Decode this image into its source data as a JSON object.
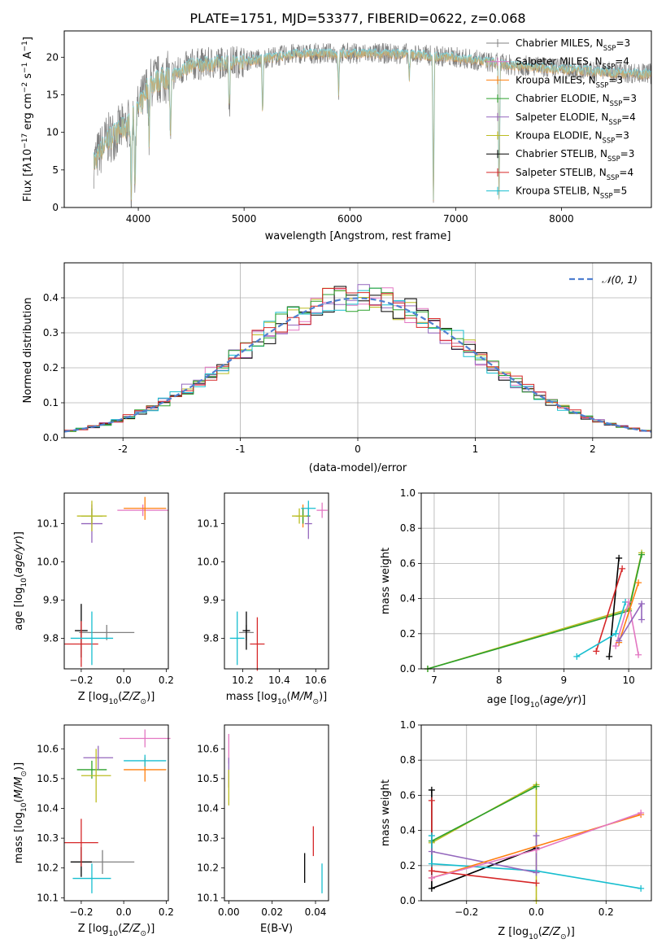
{
  "title": "PLATE=1751, MJD=53377, FIBERID=0622, z=0.068",
  "colors": {
    "chabrier_miles": "#808080",
    "salpeter_miles": "#e377c2",
    "kroupa_miles": "#ff7f0e",
    "chabrier_elodie": "#2ca02c",
    "salpeter_elodie": "#9467bd",
    "kroupa_elodie": "#bcbd22",
    "chabrier_stelib": "#000000",
    "salpeter_stelib": "#d62728",
    "kroupa_stelib": "#17becf",
    "normal_curve": "#4f7fd0"
  },
  "chart_data": [
    {
      "id": "spectrum",
      "type": "line",
      "xlabel": "wavelength [Angstrom, rest frame]",
      "ylabel": "Flux [f$_\\lambda$10$^{-17}$ erg cm$^{-2}$ s$^{-1}$ A$^{-1}$]",
      "ylabel_parts": [
        "Flux [f",
        "λ",
        "10",
        "−17",
        " erg cm",
        "−2",
        " s",
        "−1",
        " A",
        "−1",
        "]"
      ],
      "xlim": [
        3300,
        8850
      ],
      "ylim": [
        0,
        23.5
      ],
      "xticks": [
        4000,
        5000,
        6000,
        7000,
        8000
      ],
      "yticks": [
        0,
        5,
        10,
        15,
        20
      ],
      "wavelength_range": [
        3580,
        8850
      ],
      "shape": [
        [
          3580,
          6
        ],
        [
          3700,
          9
        ],
        [
          3800,
          10
        ],
        [
          3900,
          11
        ],
        [
          4000,
          13
        ],
        [
          4100,
          16.5
        ],
        [
          4300,
          17.5
        ],
        [
          4500,
          19
        ],
        [
          5000,
          19.5
        ],
        [
          5500,
          20.5
        ],
        [
          6000,
          20.5
        ],
        [
          6500,
          20.5
        ],
        [
          7000,
          20
        ],
        [
          7500,
          19
        ],
        [
          8000,
          18.5
        ],
        [
          8500,
          18
        ],
        [
          8850,
          17.8
        ]
      ],
      "absorption_lines": [
        [
          3934,
          0
        ],
        [
          3969,
          2
        ],
        [
          4102,
          9
        ],
        [
          4305,
          8
        ],
        [
          4861,
          13
        ],
        [
          5175,
          12
        ],
        [
          5893,
          15
        ],
        [
          6563,
          17
        ],
        [
          6790,
          0
        ],
        [
          7410,
          0
        ]
      ],
      "legend": [
        {
          "label": "Chabrier MILES, N",
          "sub": "SSP",
          "rest": "=3",
          "key": "chabrier_miles"
        },
        {
          "label": "Salpeter MILES, N",
          "sub": "SSP",
          "rest": "=4",
          "key": "salpeter_miles"
        },
        {
          "label": "Kroupa MILES, N",
          "sub": "SSP",
          "rest": "=3",
          "key": "kroupa_miles"
        },
        {
          "label": "Chabrier ELODIE, N",
          "sub": "SSP",
          "rest": "=3",
          "key": "chabrier_elodie"
        },
        {
          "label": "Salpeter ELODIE, N",
          "sub": "SSP",
          "rest": "=4",
          "key": "salpeter_elodie"
        },
        {
          "label": "Kroupa ELODIE, N",
          "sub": "SSP",
          "rest": "=3",
          "key": "kroupa_elodie"
        },
        {
          "label": "Chabrier STELIB, N",
          "sub": "SSP",
          "rest": "=3",
          "key": "chabrier_stelib"
        },
        {
          "label": "Salpeter STELIB, N",
          "sub": "SSP",
          "rest": "=4",
          "key": "salpeter_stelib"
        },
        {
          "label": "Kroupa STELIB, N",
          "sub": "SSP",
          "rest": "=5",
          "key": "kroupa_stelib"
        }
      ]
    },
    {
      "id": "residuals",
      "type": "step-histogram",
      "xlabel": "(data-model)/error",
      "ylabel": "Normed distribution",
      "xlim": [
        -2.5,
        2.5
      ],
      "ylim": [
        0,
        0.5
      ],
      "xticks": [
        -2,
        -1,
        0,
        1,
        2
      ],
      "yticks": [
        0.0,
        0.1,
        0.2,
        0.3,
        0.4
      ],
      "grid": true,
      "legend": [
        {
          "label": "𝒩(0, 1)",
          "key": "normal_curve"
        }
      ],
      "bin_width": 0.1,
      "bin_range": [
        -2.5,
        2.5
      ],
      "series_order": [
        "kroupa_elodie",
        "salpeter_miles",
        "salpeter_elodie",
        "chabrier_stelib",
        "kroupa_stelib",
        "chabrier_elodie",
        "salpeter_stelib",
        "normal_curve"
      ]
    },
    {
      "id": "age_vs_Z",
      "type": "errorbar",
      "xlabel": "Z [log10(Z/Z⊙)]",
      "xlabel_parts": [
        "Z [log",
        "10",
        "(",
        "Z/Z",
        "⊙",
        ")]"
      ],
      "ylabel_parts": [
        "age  [log",
        "10",
        "(",
        "age/yr",
        ")]"
      ],
      "xlim": [
        -0.28,
        0.21
      ],
      "ylim": [
        9.72,
        10.18
      ],
      "xticks": [
        -0.2,
        0.0,
        0.2
      ],
      "ytick_values": [
        9.8,
        9.9,
        10.0,
        10.1
      ],
      "xtick_labels": [
        "−0.2",
        "0.0",
        "0.2"
      ],
      "ytick_labels": [
        "9.8",
        "9.9",
        "10.0",
        "10.1"
      ],
      "points": [
        {
          "key": "chabrier_miles",
          "x": -0.08,
          "y": 9.815,
          "xerr": 0.13,
          "yerr": 0.02
        },
        {
          "key": "salpeter_miles",
          "x": 0.09,
          "y": 10.135,
          "xerr": 0.12,
          "yerr": 0.015
        },
        {
          "key": "kroupa_miles",
          "x": 0.1,
          "y": 10.14,
          "xerr": 0.1,
          "yerr": 0.03
        },
        {
          "key": "chabrier_elodie",
          "x": -0.15,
          "y": 10.12,
          "xerr": 0.05,
          "yerr": 0.02
        },
        {
          "key": "salpeter_elodie",
          "x": -0.15,
          "y": 10.1,
          "xerr": 0.05,
          "yerr": 0.05
        },
        {
          "key": "kroupa_elodie",
          "x": -0.15,
          "y": 10.12,
          "xerr": 0.07,
          "yerr": 0.04
        },
        {
          "key": "chabrier_stelib",
          "x": -0.2,
          "y": 9.82,
          "xerr": 0.03,
          "yerr": 0.07
        },
        {
          "key": "salpeter_stelib",
          "x": -0.2,
          "y": 9.785,
          "xerr": 0.08,
          "yerr": 0.06
        },
        {
          "key": "kroupa_stelib",
          "x": -0.15,
          "y": 9.8,
          "xerr": 0.1,
          "yerr": 0.07
        }
      ]
    },
    {
      "id": "age_vs_mass",
      "type": "errorbar",
      "xlabel_parts": [
        "mass [log",
        "10",
        "(",
        "M/M",
        "⊙",
        ")]"
      ],
      "xlim": [
        10.1,
        10.67
      ],
      "ylim": [
        9.72,
        10.18
      ],
      "xticks": [
        10.2,
        10.4,
        10.6
      ],
      "ytick_values": [
        9.8,
        9.9,
        10.0,
        10.1
      ],
      "xtick_labels": [
        "10.2",
        "10.4",
        "10.6"
      ],
      "ytick_labels": [
        "9.8",
        "9.9",
        "10.0",
        "10.1"
      ],
      "points": [
        {
          "key": "chabrier_miles",
          "x": 10.22,
          "y": 9.815,
          "xerr": 0.04,
          "yerr": 0.02
        },
        {
          "key": "salpeter_miles",
          "x": 10.635,
          "y": 10.135,
          "xerr": 0.03,
          "yerr": 0.02
        },
        {
          "key": "kroupa_miles",
          "x": 10.53,
          "y": 10.12,
          "xerr": 0.02,
          "yerr": 0.03
        },
        {
          "key": "chabrier_elodie",
          "x": 10.53,
          "y": 10.12,
          "xerr": 0.04,
          "yerr": 0.02
        },
        {
          "key": "salpeter_elodie",
          "x": 10.56,
          "y": 10.1,
          "xerr": 0.02,
          "yerr": 0.04
        },
        {
          "key": "kroupa_elodie",
          "x": 10.51,
          "y": 10.12,
          "xerr": 0.04,
          "yerr": 0.02
        },
        {
          "key": "chabrier_stelib",
          "x": 10.22,
          "y": 9.82,
          "xerr": 0.02,
          "yerr": 0.05
        },
        {
          "key": "salpeter_stelib",
          "x": 10.28,
          "y": 9.785,
          "xerr": 0.04,
          "yerr": 0.07
        },
        {
          "key": "kroupa_stelib",
          "x": 10.17,
          "y": 9.8,
          "xerr": 0.04,
          "yerr": 0.07
        },
        {
          "key": "kroupa_stelib",
          "x": 10.56,
          "y": 10.14,
          "xerr": 0.04,
          "yerr": 0.02
        }
      ]
    },
    {
      "id": "massweight_vs_age",
      "type": "line",
      "xlabel_parts": [
        "age  [log",
        "10",
        "(",
        "age/yr",
        ")]"
      ],
      "ylabel": "mass weight",
      "xlim": [
        6.8,
        10.35
      ],
      "ylim": [
        0,
        1
      ],
      "xticks": [
        7,
        8,
        9,
        10
      ],
      "yticks": [
        0.0,
        0.2,
        0.4,
        0.6,
        0.8,
        1.0
      ],
      "grid": true,
      "series": [
        {
          "key": "kroupa_elodie",
          "points": [
            [
              6.9,
              0.0
            ],
            [
              10.0,
              0.34
            ],
            [
              10.2,
              0.66
            ]
          ]
        },
        {
          "key": "chabrier_elodie",
          "points": [
            [
              6.9,
              0.0
            ],
            [
              10.0,
              0.33
            ],
            [
              10.2,
              0.65
            ]
          ]
        },
        {
          "key": "chabrier_stelib",
          "points": [
            [
              9.7,
              0.07
            ],
            [
              9.85,
              0.63
            ]
          ]
        },
        {
          "key": "salpeter_stelib",
          "points": [
            [
              9.5,
              0.1
            ],
            [
              9.9,
              0.57
            ]
          ]
        },
        {
          "key": "kroupa_stelib",
          "points": [
            [
              9.2,
              0.07
            ],
            [
              9.8,
              0.2
            ],
            [
              9.95,
              0.38
            ]
          ]
        },
        {
          "key": "salpeter_miles",
          "points": [
            [
              9.8,
              0.13
            ],
            [
              10.0,
              0.38
            ],
            [
              10.15,
              0.08
            ]
          ]
        },
        {
          "key": "kroupa_miles",
          "points": [
            [
              9.85,
              0.15
            ],
            [
              10.15,
              0.49
            ]
          ]
        },
        {
          "key": "salpeter_elodie",
          "points": [
            [
              9.85,
              0.16
            ],
            [
              10.2,
              0.37
            ],
            [
              10.2,
              0.28
            ]
          ]
        }
      ]
    },
    {
      "id": "mass_vs_Z",
      "type": "errorbar",
      "xlabel_parts": [
        "Z [log",
        "10",
        "(",
        "Z/Z",
        "⊙",
        ")]"
      ],
      "ylabel_parts": [
        "mass [log",
        "10",
        "(",
        "M/M",
        "⊙",
        ")]"
      ],
      "xlim": [
        -0.28,
        0.21
      ],
      "ylim": [
        10.09,
        10.68
      ],
      "xticks": [
        -0.2,
        0.0,
        0.2
      ],
      "ytick_values": [
        10.1,
        10.2,
        10.3,
        10.4,
        10.5,
        10.6
      ],
      "xtick_labels": [
        "−0.2",
        "0.0",
        "0.2"
      ],
      "ytick_labels": [
        "10.1",
        "10.2",
        "10.3",
        "10.4",
        "10.5",
        "10.6"
      ],
      "points": [
        {
          "key": "chabrier_miles",
          "x": -0.1,
          "y": 10.22,
          "xerr": 0.15,
          "yerr": 0.04
        },
        {
          "key": "salpeter_miles",
          "x": 0.1,
          "y": 10.635,
          "xerr": 0.12,
          "yerr": 0.03
        },
        {
          "key": "kroupa_miles",
          "x": 0.1,
          "y": 10.53,
          "xerr": 0.1,
          "yerr": 0.04
        },
        {
          "key": "chabrier_elodie",
          "x": -0.15,
          "y": 10.53,
          "xerr": 0.07,
          "yerr": 0.03
        },
        {
          "key": "salpeter_elodie",
          "x": -0.12,
          "y": 10.57,
          "xerr": 0.07,
          "yerr": 0.04
        },
        {
          "key": "kroupa_elodie",
          "x": -0.13,
          "y": 10.51,
          "xerr": 0.07,
          "yerr": 0.09
        },
        {
          "key": "chabrier_stelib",
          "x": -0.2,
          "y": 10.22,
          "xerr": 0.05,
          "yerr": 0.05
        },
        {
          "key": "salpeter_stelib",
          "x": -0.2,
          "y": 10.285,
          "xerr": 0.08,
          "yerr": 0.08
        },
        {
          "key": "kroupa_stelib",
          "x": -0.15,
          "y": 10.165,
          "xerr": 0.09,
          "yerr": 0.05
        },
        {
          "key": "kroupa_stelib",
          "x": 0.1,
          "y": 10.56,
          "xerr": 0.1,
          "yerr": 0.02
        }
      ]
    },
    {
      "id": "mass_vs_ebv",
      "type": "errorbar",
      "xlabel": "E(B-V)",
      "xlim": [
        -0.002,
        0.046
      ],
      "ylim": [
        10.09,
        10.68
      ],
      "xticks": [
        0.0,
        0.02,
        0.04
      ],
      "ytick_values": [
        10.1,
        10.2,
        10.3,
        10.4,
        10.5,
        10.6
      ],
      "xtick_labels": [
        "0.00",
        "0.02",
        "0.04"
      ],
      "ytick_labels": [
        "10.1",
        "10.2",
        "10.3",
        "10.4",
        "10.5",
        "10.6"
      ],
      "points": [
        {
          "key": "salpeter_miles",
          "x": 0.0,
          "y": 10.6,
          "xerr": 0,
          "yerr": 0.05
        },
        {
          "key": "salpeter_elodie",
          "x": 0.0,
          "y": 10.52,
          "xerr": 0,
          "yerr": 0.05
        },
        {
          "key": "kroupa_elodie",
          "x": 0.0,
          "y": 10.47,
          "xerr": 0,
          "yerr": 0.06
        },
        {
          "key": "chabrier_stelib",
          "x": 0.035,
          "y": 10.2,
          "xerr": 0,
          "yerr": 0.05
        },
        {
          "key": "salpeter_stelib",
          "x": 0.039,
          "y": 10.29,
          "xerr": 0,
          "yerr": 0.05
        },
        {
          "key": "kroupa_stelib",
          "x": 0.043,
          "y": 10.165,
          "xerr": 0,
          "yerr": 0.05
        }
      ]
    },
    {
      "id": "massweight_vs_Z",
      "type": "line",
      "xlabel_parts": [
        "Z [log",
        "10",
        "(",
        "Z/Z",
        "⊙",
        ")]"
      ],
      "ylabel": "mass weight",
      "xlim": [
        -0.33,
        0.33
      ],
      "ylim": [
        0,
        1
      ],
      "xticks": [
        -0.2,
        0.0,
        0.2
      ],
      "xtick_labels": [
        "−0.2",
        "0.0",
        "0.2"
      ],
      "yticks": [
        0.0,
        0.2,
        0.4,
        0.6,
        0.8,
        1.0
      ],
      "grid": true,
      "series": [
        {
          "key": "kroupa_elodie",
          "points": [
            [
              -0.3,
              0.33
            ],
            [
              0.0,
              0.66
            ],
            [
              0.0,
              0.0
            ]
          ]
        },
        {
          "key": "chabrier_elodie",
          "points": [
            [
              -0.3,
              0.34
            ],
            [
              0.0,
              0.65
            ]
          ]
        },
        {
          "key": "chabrier_stelib",
          "points": [
            [
              -0.3,
              0.63
            ],
            [
              -0.3,
              0.07
            ],
            [
              0.0,
              0.3
            ]
          ]
        },
        {
          "key": "salpeter_stelib",
          "points": [
            [
              -0.3,
              0.57
            ],
            [
              -0.3,
              0.17
            ],
            [
              0.0,
              0.1
            ]
          ]
        },
        {
          "key": "kroupa_stelib",
          "points": [
            [
              -0.3,
              0.37
            ],
            [
              -0.3,
              0.21
            ],
            [
              0.0,
              0.17
            ],
            [
              0.3,
              0.07
            ]
          ]
        },
        {
          "key": "salpeter_elodie",
          "points": [
            [
              -0.3,
              0.28
            ],
            [
              0.0,
              0.16
            ],
            [
              0.0,
              0.37
            ]
          ]
        },
        {
          "key": "kroupa_miles",
          "points": [
            [
              -0.3,
              0.13
            ],
            [
              0.3,
              0.49
            ]
          ]
        },
        {
          "key": "salpeter_miles",
          "points": [
            [
              -0.3,
              0.13
            ],
            [
              0.0,
              0.29
            ],
            [
              0.3,
              0.5
            ]
          ]
        }
      ]
    }
  ]
}
